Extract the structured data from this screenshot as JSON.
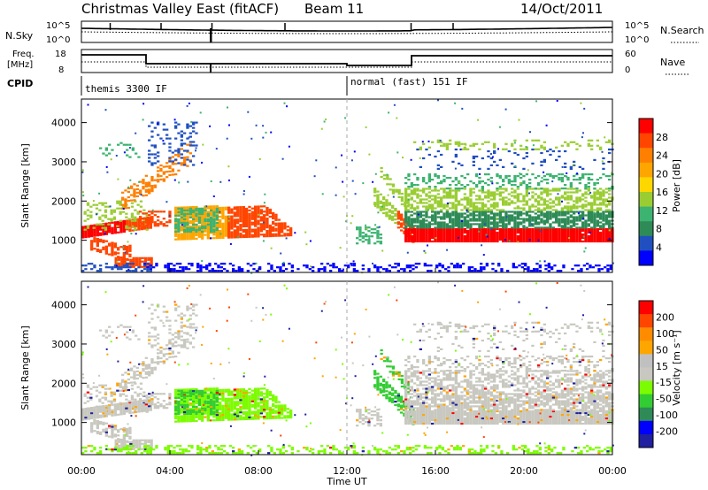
{
  "header": {
    "title": "Christmas Valley East (fitACF)",
    "beam": "Beam 11",
    "date": "14/Oct/2011"
  },
  "params": {
    "nsky_label": "N.Sky",
    "nsearch_label": "N.Search",
    "freq_label_1": "Freq.",
    "freq_label_2": "[MHz]",
    "nave_label": "Nave",
    "cpid_label": "CPID",
    "nsky_ticks": [
      "10^5",
      "10^0"
    ],
    "nsearch_ticks": [
      "10^5",
      "10^0"
    ],
    "freq_ticks": [
      "18",
      "8"
    ],
    "nave_ticks": [
      "60",
      "0"
    ],
    "cpid_segments": [
      {
        "label": "themis 3300 IF",
        "start_h": 0
      },
      {
        "label": "normal (fast) 151 IF",
        "start_h": 12
      }
    ]
  },
  "chart_data": [
    {
      "type": "heatmap",
      "name": "power-panel",
      "ylabel": "Slant Range [km]",
      "xlabel": "",
      "ylim": [
        180,
        4600
      ],
      "yticks": [
        "4000",
        "3000",
        "2000",
        "1000"
      ],
      "colorbar_label": "Power [dB]",
      "colorbar_ticks": [
        "28",
        "24",
        "20",
        "16",
        "12",
        "8",
        "4"
      ],
      "colors": [
        "#0000ff",
        "#2050c0",
        "#2e8b57",
        "#3cb371",
        "#9acd32",
        "#ffd700",
        "#ffa500",
        "#ff7f00",
        "#ff4500",
        "#ff0000"
      ]
    },
    {
      "type": "heatmap",
      "name": "velocity-panel",
      "ylabel": "Slant Range [km]",
      "xlabel": "Time UT",
      "ylim": [
        180,
        4600
      ],
      "yticks": [
        "4000",
        "3000",
        "2000",
        "1000"
      ],
      "xlim": [
        0,
        24
      ],
      "xticks": [
        "00:00",
        "04:00",
        "08:00",
        "12:00",
        "16:00",
        "20:00",
        "00:00"
      ],
      "colorbar_label": "Velocity [m s⁻¹]",
      "colorbar_ticks": [
        "200",
        "100",
        "50",
        "15",
        "-15",
        "-50",
        "-100",
        "-200"
      ],
      "colors": [
        "#2020a0",
        "#0000ff",
        "#2e8b57",
        "#32cd32",
        "#7cfc00",
        "#c8c8c0",
        "#c0c0c0",
        "#ffa500",
        "#ff8c00",
        "#ff4500",
        "#ff0000"
      ]
    }
  ]
}
